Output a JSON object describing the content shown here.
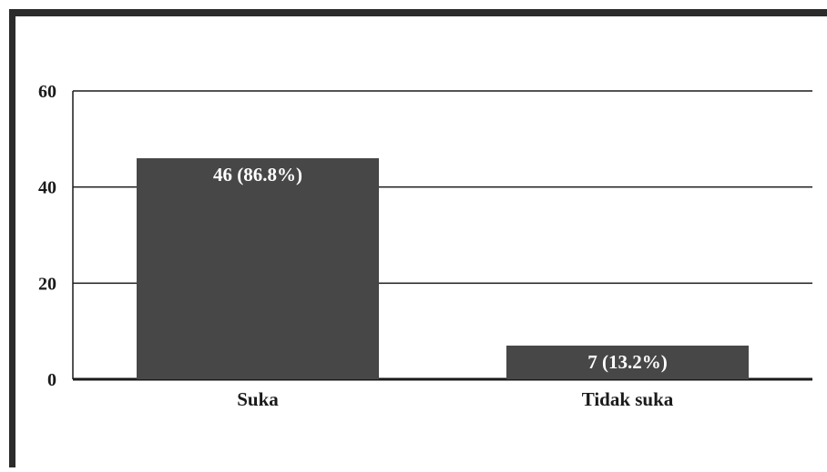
{
  "chart_data": {
    "type": "bar",
    "categories": [
      "Suka",
      "Tidak suka"
    ],
    "values": [
      46,
      7
    ],
    "data_labels": [
      "46 (86.8%)",
      "7 (13.2%)"
    ],
    "ylim": [
      0,
      60
    ],
    "yticks": [
      0,
      20,
      40,
      60
    ],
    "ytick_labels": [
      "0",
      "20",
      "40",
      "60"
    ],
    "grid": true,
    "legend": "none",
    "colors": {
      "bar": "#474747",
      "bar_label": "#ffffff",
      "frame": "#2b2b2b",
      "text": "#1a1a1a",
      "grid": "#1a1a1a"
    }
  }
}
